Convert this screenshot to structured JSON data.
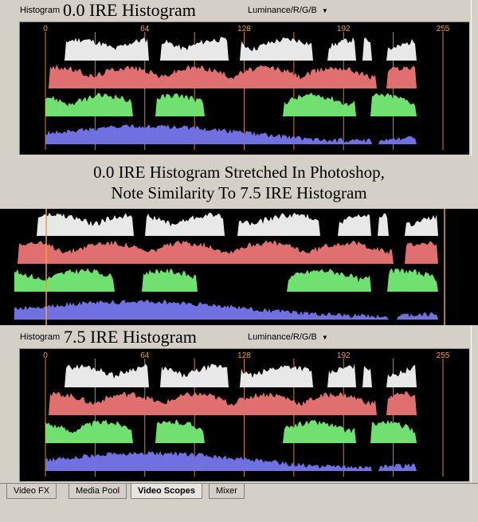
{
  "top": {
    "section_label": "Histogram",
    "title": "0.0 IRE Histogram",
    "channel_select": "Luminance/R/G/B"
  },
  "caption": {
    "line1": "0.0 IRE Histogram Stretched In Photoshop,",
    "line2": "Note Similarity To 7.5 IRE Histogram"
  },
  "bottom": {
    "section_label": "Histogram",
    "title": "7.5 IRE Histogram",
    "channel_select": "Luminance/R/G/B"
  },
  "axis_ticks": [
    "0",
    "64",
    "128",
    "192",
    "255"
  ],
  "channels": [
    {
      "name": "Luminance",
      "color": "#e8e8e8"
    },
    {
      "name": "R",
      "color": "#e07070"
    },
    {
      "name": "G",
      "color": "#70e070"
    },
    {
      "name": "B",
      "color": "#7070e0"
    }
  ],
  "colors": {
    "scope_bg": "#000000",
    "grid_line": "#f0a030"
  },
  "tabs": [
    {
      "label": "Video FX",
      "active": false
    },
    {
      "label": "Media Pool",
      "active": false
    },
    {
      "label": "Video Scopes",
      "active": true
    },
    {
      "label": "Mixer",
      "active": false
    }
  ]
}
